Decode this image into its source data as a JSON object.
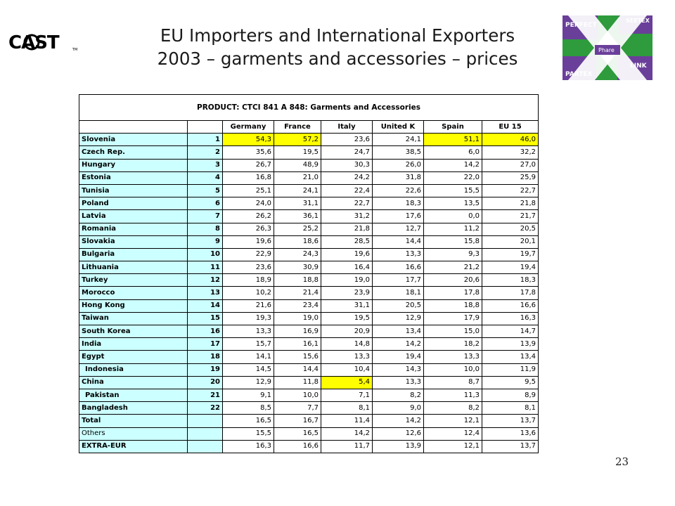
{
  "header": {
    "logo_left": "CAST",
    "logo_tm": "TM",
    "title_line1": "EU Importers and International Exporters",
    "title_line2": "2003 – garments and accessories – prices",
    "logo_right": {
      "top_right": "SEETEX",
      "top_left": "PERFECT",
      "center": "Phare",
      "bottom_left": "PARTEX",
      "bottom_right": "LINK"
    }
  },
  "table": {
    "product_label": "PRODUCT: CTCI 841 A 848: Garments and Accessories",
    "columns": [
      "Germany",
      "France",
      "Italy",
      "United K",
      "Spain",
      "EU 15"
    ],
    "rows": [
      {
        "country": "Slovenia",
        "rank": "1",
        "values": [
          "54,3",
          "57,2",
          "23,6",
          "24,1",
          "51,1",
          "46,0"
        ],
        "highlight": [
          0,
          1,
          4,
          5
        ]
      },
      {
        "country": "Czech Rep.",
        "rank": "2",
        "values": [
          "35,6",
          "19,5",
          "24,7",
          "38,5",
          "6,0",
          "32,2"
        ],
        "highlight": []
      },
      {
        "country": "Hungary",
        "rank": "3",
        "values": [
          "26,7",
          "48,9",
          "30,3",
          "26,0",
          "14,2",
          "27,0"
        ],
        "highlight": []
      },
      {
        "country": "Estonia",
        "rank": "4",
        "values": [
          "16,8",
          "21,0",
          "24,2",
          "31,8",
          "22,0",
          "25,9"
        ],
        "highlight": []
      },
      {
        "country": "Tunisia",
        "rank": "5",
        "values": [
          "25,1",
          "24,1",
          "22,4",
          "22,6",
          "15,5",
          "22,7"
        ],
        "highlight": []
      },
      {
        "country": "Poland",
        "rank": "6",
        "values": [
          "24,0",
          "31,1",
          "22,7",
          "18,3",
          "13,5",
          "21,8"
        ],
        "highlight": []
      },
      {
        "country": "Latvia",
        "rank": "7",
        "values": [
          "26,2",
          "36,1",
          "31,2",
          "17,6",
          "0,0",
          "21,7"
        ],
        "highlight": []
      },
      {
        "country": "Romania",
        "rank": "8",
        "values": [
          "26,3",
          "25,2",
          "21,8",
          "12,7",
          "11,2",
          "20,5"
        ],
        "highlight": []
      },
      {
        "country": "Slovakia",
        "rank": "9",
        "values": [
          "19,6",
          "18,6",
          "28,5",
          "14,4",
          "15,8",
          "20,1"
        ],
        "highlight": []
      },
      {
        "country": "Bulgaria",
        "rank": "10",
        "values": [
          "22,9",
          "24,3",
          "19,6",
          "13,3",
          "9,3",
          "19,7"
        ],
        "highlight": []
      },
      {
        "country": "Lithuania",
        "rank": "11",
        "values": [
          "23,6",
          "30,9",
          "16,4",
          "16,6",
          "21,2",
          "19,4"
        ],
        "highlight": []
      },
      {
        "country": "Turkey",
        "rank": "12",
        "values": [
          "18,9",
          "18,8",
          "19,0",
          "17,7",
          "20,6",
          "18,3"
        ],
        "highlight": []
      },
      {
        "country": "Morocco",
        "rank": "13",
        "values": [
          "10,2",
          "21,4",
          "23,9",
          "18,1",
          "17,8",
          "17,8"
        ],
        "highlight": []
      },
      {
        "country": "Hong Kong",
        "rank": "14",
        "values": [
          "21,6",
          "23,4",
          "31,1",
          "20,5",
          "18,8",
          "16,6"
        ],
        "highlight": []
      },
      {
        "country": "Taiwan",
        "rank": "15",
        "values": [
          "19,3",
          "19,0",
          "19,5",
          "12,9",
          "17,9",
          "16,3"
        ],
        "highlight": []
      },
      {
        "country": "South Korea",
        "rank": "16",
        "values": [
          "13,3",
          "16,9",
          "20,9",
          "13,4",
          "15,0",
          "14,7"
        ],
        "highlight": []
      },
      {
        "country": "India",
        "rank": "17",
        "values": [
          "15,7",
          "16,1",
          "14,8",
          "14,2",
          "18,2",
          "13,9"
        ],
        "highlight": []
      },
      {
        "country": "Egypt",
        "rank": "18",
        "values": [
          "14,1",
          "15,6",
          "13,3",
          "19,4",
          "13,3",
          "13,4"
        ],
        "highlight": []
      },
      {
        "country": "Indonesia",
        "rank": "19",
        "values": [
          "14,5",
          "14,4",
          "10,4",
          "14,3",
          "10,0",
          "11,9"
        ],
        "highlight": [],
        "indent": true
      },
      {
        "country": "China",
        "rank": "20",
        "values": [
          "12,9",
          "11,8",
          "5,4",
          "13,3",
          "8,7",
          "9,5"
        ],
        "highlight": [
          2
        ]
      },
      {
        "country": "Pakistan",
        "rank": "21",
        "values": [
          "9,1",
          "10,0",
          "7,1",
          "8,2",
          "11,3",
          "8,9"
        ],
        "highlight": [],
        "indent": true
      },
      {
        "country": "Bangladesh",
        "rank": "22",
        "values": [
          "8,5",
          "7,7",
          "8,1",
          "9,0",
          "8,2",
          "8,1"
        ],
        "highlight": []
      },
      {
        "country": "Total",
        "rank": "",
        "values": [
          "16,5",
          "16,7",
          "11,4",
          "14,2",
          "12,1",
          "13,7"
        ],
        "highlight": []
      },
      {
        "country": "Others",
        "rank": "",
        "values": [
          "15,5",
          "16,5",
          "14,2",
          "12,6",
          "12,4",
          "13,6"
        ],
        "highlight": [],
        "light": true
      },
      {
        "country": "EXTRA-EUR",
        "rank": "",
        "values": [
          "16,3",
          "16,6",
          "11,7",
          "13,9",
          "12,1",
          "13,7"
        ],
        "highlight": []
      }
    ]
  },
  "footer": {
    "page_number": "23"
  },
  "colors": {
    "country_bg": "#ccffff",
    "highlight": "#ffff00",
    "logo_green": "#2e9b3c",
    "logo_purple": "#6a3f9a"
  }
}
